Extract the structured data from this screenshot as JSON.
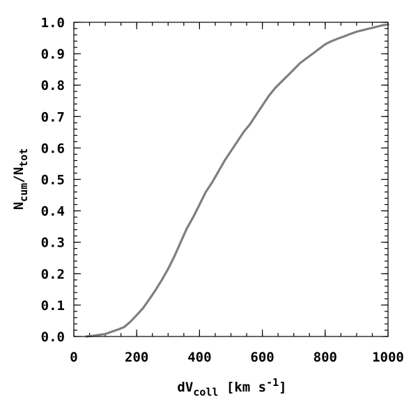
{
  "chart_data": {
    "type": "line",
    "title": "",
    "xlabel": {
      "main": "dV",
      "sub": "coll",
      "units_prefix": " [km s",
      "sup": "-1",
      "units_suffix": "]"
    },
    "ylabel": {
      "n1": "N",
      "sub1": "cum",
      "slash": "/",
      "n2": "N",
      "sub2": "tot"
    },
    "xlim": [
      0,
      1000
    ],
    "ylim": [
      0.0,
      1.0
    ],
    "x_ticks": [
      {
        "value": 0,
        "label": "0"
      },
      {
        "value": 200,
        "label": "200"
      },
      {
        "value": 400,
        "label": "400"
      },
      {
        "value": 600,
        "label": "600"
      },
      {
        "value": 800,
        "label": "800"
      },
      {
        "value": 1000,
        "label": "1000"
      }
    ],
    "y_ticks": [
      {
        "value": 0.0,
        "label": "0.0"
      },
      {
        "value": 0.1,
        "label": "0.1"
      },
      {
        "value": 0.2,
        "label": "0.2"
      },
      {
        "value": 0.3,
        "label": "0.3"
      },
      {
        "value": 0.4,
        "label": "0.4"
      },
      {
        "value": 0.5,
        "label": "0.5"
      },
      {
        "value": 0.6,
        "label": "0.6"
      },
      {
        "value": 0.7,
        "label": "0.7"
      },
      {
        "value": 0.8,
        "label": "0.8"
      },
      {
        "value": 0.9,
        "label": "0.9"
      },
      {
        "value": 1.0,
        "label": "1.0"
      }
    ],
    "x_minor_step": 50,
    "y_minor_step": 0.02,
    "grid": false,
    "legend": "none",
    "series": [
      {
        "color": "#7f7f7f",
        "x": [
          40,
          60,
          80,
          100,
          120,
          140,
          160,
          180,
          200,
          220,
          240,
          260,
          280,
          300,
          320,
          340,
          360,
          380,
          400,
          420,
          440,
          460,
          480,
          500,
          520,
          540,
          560,
          580,
          600,
          620,
          640,
          660,
          680,
          700,
          720,
          740,
          760,
          780,
          800,
          820,
          840,
          860,
          880,
          900,
          920,
          940,
          960,
          980,
          1000
        ],
        "y": [
          0.0,
          0.002,
          0.005,
          0.008,
          0.015,
          0.022,
          0.03,
          0.047,
          0.068,
          0.09,
          0.118,
          0.148,
          0.18,
          0.215,
          0.255,
          0.3,
          0.345,
          0.38,
          0.42,
          0.46,
          0.49,
          0.525,
          0.56,
          0.59,
          0.62,
          0.65,
          0.675,
          0.705,
          0.735,
          0.765,
          0.79,
          0.81,
          0.83,
          0.85,
          0.87,
          0.885,
          0.9,
          0.915,
          0.93,
          0.94,
          0.948,
          0.955,
          0.963,
          0.97,
          0.975,
          0.98,
          0.985,
          0.99,
          0.993
        ]
      }
    ]
  }
}
